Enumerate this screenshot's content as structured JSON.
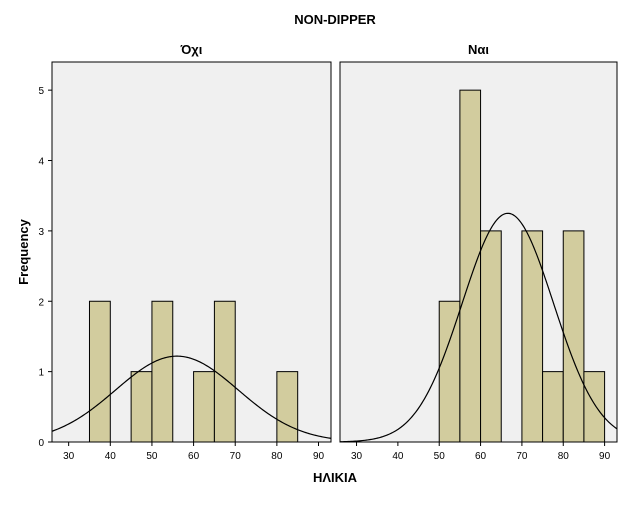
{
  "chart_data": {
    "type": "histogram",
    "title": "NON-DIPPER",
    "xlabel": "ΗΛΙΚΙΑ",
    "ylabel": "Frequency",
    "xlim": [
      26,
      93
    ],
    "ylim": [
      0,
      5.4
    ],
    "x_ticks": [
      30,
      40,
      50,
      60,
      70,
      80,
      90
    ],
    "y_ticks": [
      0,
      1,
      2,
      3,
      4,
      5
    ],
    "bin_width": 5,
    "grid": false,
    "legend": "none",
    "bar_color": "#d2cc9e",
    "bar_edge_color": "#000000",
    "panel_background": "#f0f0f0",
    "panels": [
      {
        "name": "Όχι",
        "bins": [
          {
            "x0": 35,
            "x1": 40,
            "count": 2
          },
          {
            "x0": 45,
            "x1": 50,
            "count": 1
          },
          {
            "x0": 50,
            "x1": 55,
            "count": 2
          },
          {
            "x0": 60,
            "x1": 65,
            "count": 1
          },
          {
            "x0": 65,
            "x1": 70,
            "count": 2
          },
          {
            "x0": 80,
            "x1": 85,
            "count": 1
          }
        ],
        "normal_curve": {
          "mean": 56,
          "peak": 1.22
        }
      },
      {
        "name": "Ναι",
        "bins": [
          {
            "x0": 50,
            "x1": 55,
            "count": 2
          },
          {
            "x0": 55,
            "x1": 60,
            "count": 5
          },
          {
            "x0": 60,
            "x1": 65,
            "count": 3
          },
          {
            "x0": 70,
            "x1": 75,
            "count": 3
          },
          {
            "x0": 75,
            "x1": 80,
            "count": 1
          },
          {
            "x0": 80,
            "x1": 85,
            "count": 3
          },
          {
            "x0": 85,
            "x1": 90,
            "count": 1
          }
        ],
        "normal_curve": {
          "mean": 66.6,
          "peak": 3.25
        }
      }
    ]
  }
}
